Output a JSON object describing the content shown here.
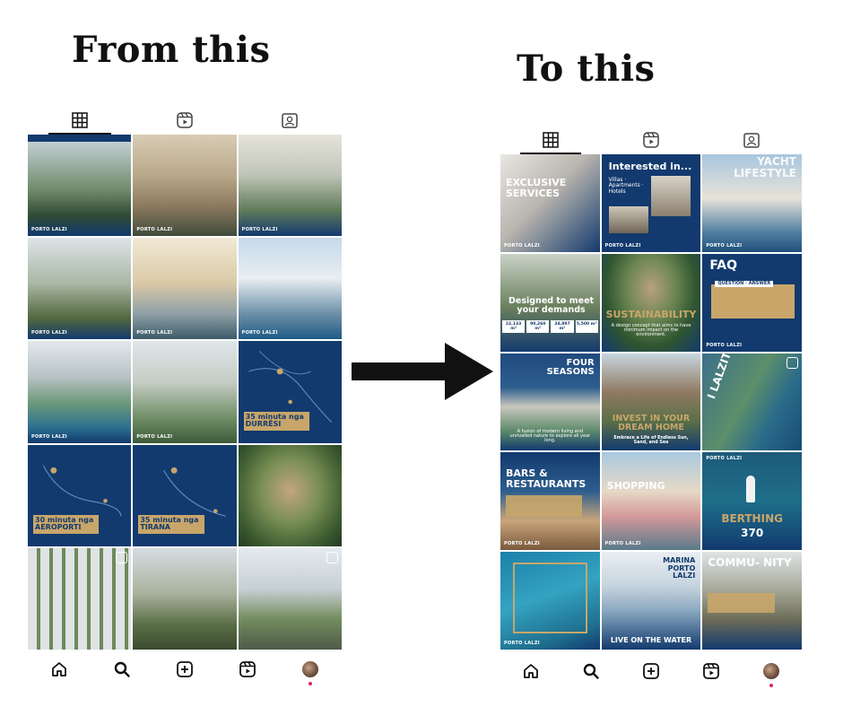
{
  "headings": {
    "left": "From this",
    "right": "To this"
  },
  "icons": {
    "tabs": [
      "grid-icon",
      "reels-icon",
      "tagged-icon"
    ],
    "nav": [
      "home-icon",
      "search-icon",
      "create-icon",
      "reels-icon",
      "profile-avatar"
    ]
  },
  "colors": {
    "navy": "#123a6e",
    "gold": "#c8a66a",
    "accent_red": "#e0245e"
  },
  "left_grid": {
    "brand": "PORTO LALZI",
    "overlays": [
      {
        "index": 8,
        "title": "35 minuta nga DURRËSI"
      },
      {
        "index": 9,
        "title": "30 minuta nga AEROPORTI"
      },
      {
        "index": 10,
        "title": "35 minuta nga TIRANA"
      }
    ]
  },
  "right_grid": {
    "brand": "PORTO LALZI",
    "tiles": [
      {
        "title": "EXCLUSIVE SERVICES"
      },
      {
        "title": "Interested in...",
        "subtitle": "Villas · Apartments · Hotels"
      },
      {
        "title": "YACHT LIFESTYLE"
      },
      {
        "title": "Designed to meet your demands"
      },
      {
        "title": "SUSTAINABILITY",
        "subtitle": "A design concept that aims to have minimum impact on the environment."
      },
      {
        "title": "FAQ",
        "subtitle": "QUESTION · ANSWER"
      },
      {
        "title": "FOUR SEASONS",
        "subtitle": "A fusion of modern living and unrivalled nature to explore all year long."
      },
      {
        "title": "INVEST IN YOUR DREAM HOME",
        "subtitle": "Embrace a Life of Endless Sun, Sand, and Sea"
      },
      {
        "title": "I LALZIT"
      },
      {
        "title": "BARS & RESTAURANTS"
      },
      {
        "title": "SHOPPING"
      },
      {
        "title": "BERTHING",
        "subtitle": "370"
      },
      {
        "title": ""
      },
      {
        "title": "MARINA PORTO LALZI",
        "subtitle": "LIVE ON THE WATER"
      },
      {
        "title": "COMMU- NITY"
      }
    ],
    "stats": [
      "22,133 m²",
      "90,260 m²",
      "34,897 m²",
      "5,500 m²"
    ]
  }
}
